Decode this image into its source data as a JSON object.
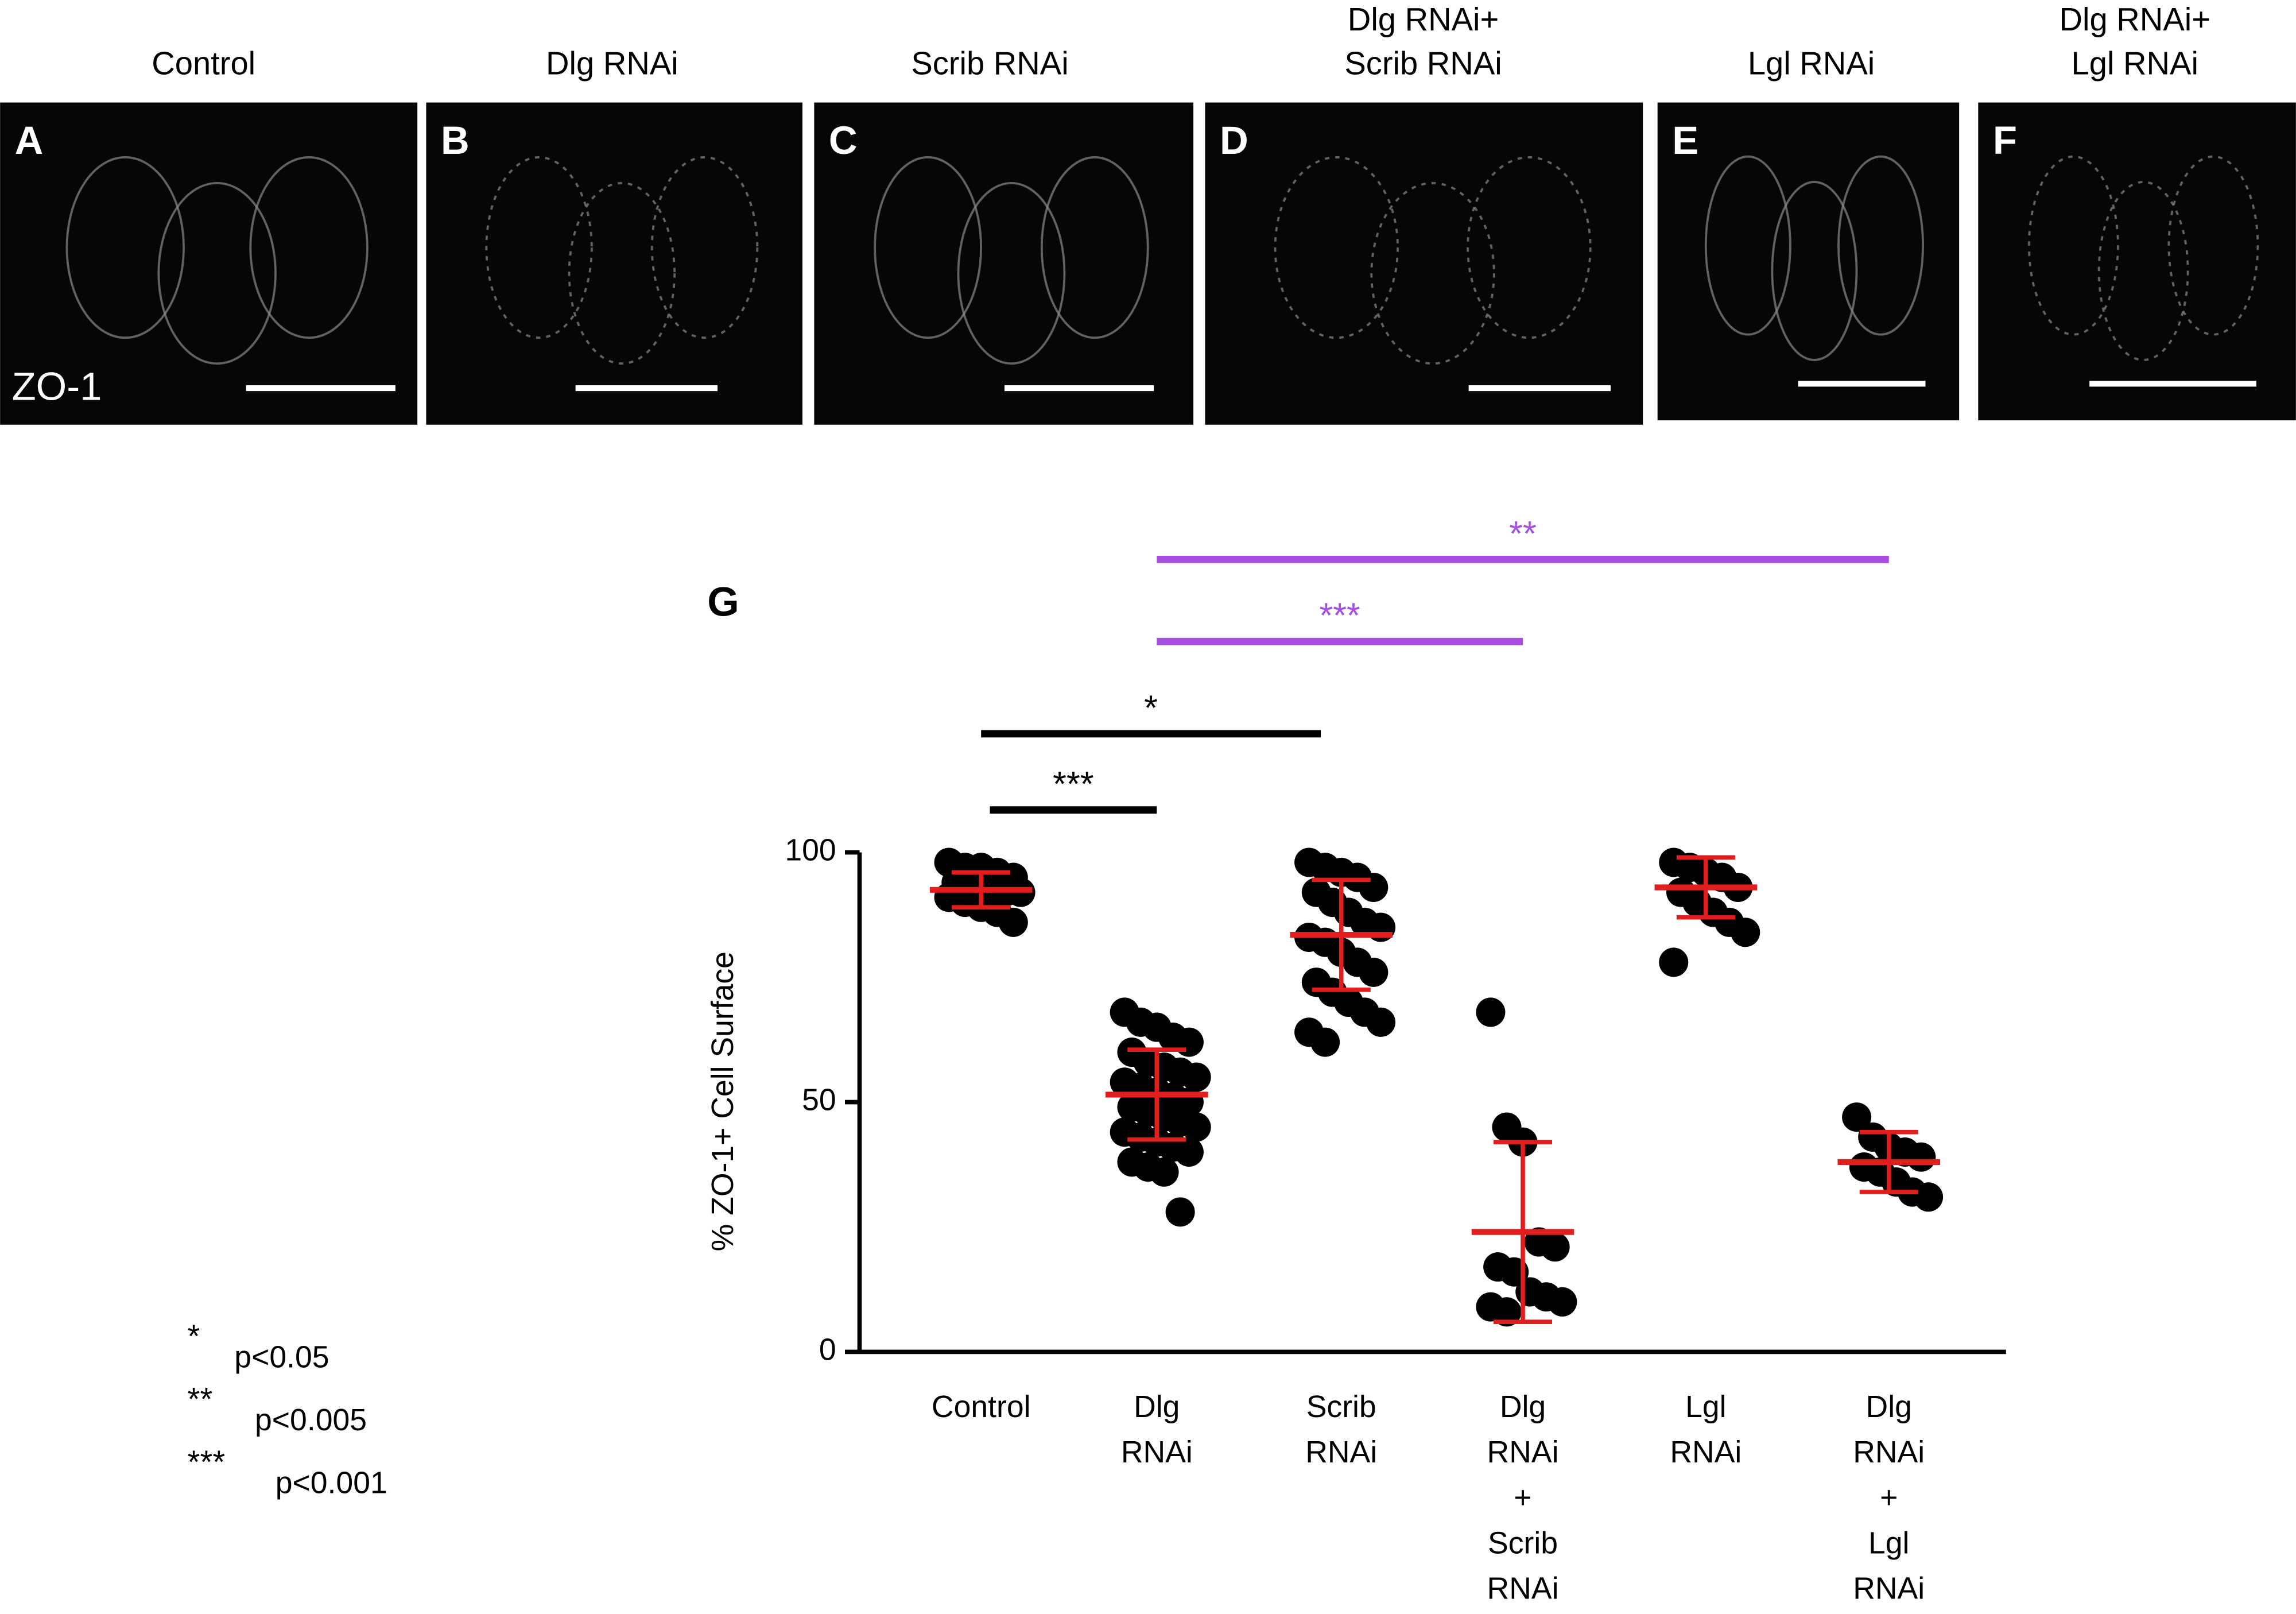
{
  "panels": [
    {
      "letter": "A",
      "title": [
        "Control"
      ],
      "stain": "ZO-1"
    },
    {
      "letter": "B",
      "title": [
        "Dlg RNAi"
      ]
    },
    {
      "letter": "C",
      "title": [
        "Scrib RNAi"
      ]
    },
    {
      "letter": "D",
      "title": [
        "Dlg RNAi+",
        "Scrib RNAi"
      ]
    },
    {
      "letter": "E",
      "title": [
        "Lgl RNAi"
      ]
    },
    {
      "letter": "F",
      "title": [
        "Dlg RNAi+",
        "Lgl RNAi"
      ]
    }
  ],
  "chart_data": {
    "type": "dot",
    "panel_label": "G",
    "y_label": "% ZO-1+ Cell Surface",
    "categories": [
      [
        "Control"
      ],
      [
        "Dlg",
        "RNAi"
      ],
      [
        "Scrib",
        "RNAi"
      ],
      [
        "Dlg",
        "RNAi",
        "+",
        "Scrib",
        "RNAi"
      ],
      [
        "Lgl",
        "RNAi"
      ],
      [
        "Dlg",
        "RNAi",
        "+",
        "Lgl",
        "RNAi"
      ]
    ],
    "ylim": [
      0,
      100
    ],
    "yticks": [
      0,
      50,
      100
    ],
    "dot_color": "#000000",
    "summary_color": "#e01e1e",
    "means": [
      92.5,
      51.5,
      83.5,
      24,
      93,
      38
    ],
    "sd": [
      3.5,
      9,
      11,
      18,
      6,
      6
    ],
    "points": [
      [
        98,
        97,
        97,
        96,
        95,
        94,
        93,
        93,
        92,
        92,
        91,
        90,
        89,
        88,
        86
      ],
      [
        68,
        66,
        65,
        63,
        62,
        60,
        58,
        57,
        56,
        55,
        54,
        53,
        52,
        51,
        50,
        49,
        48,
        47,
        46,
        45,
        44,
        43,
        42,
        41,
        40,
        38,
        37,
        36,
        28
      ],
      [
        98,
        97,
        96,
        95,
        93,
        92,
        90,
        88,
        86,
        85,
        83,
        82,
        80,
        78,
        76,
        74,
        72,
        70,
        68,
        66,
        64,
        62
      ],
      [
        68,
        45,
        42,
        22,
        21,
        17,
        16,
        12,
        11,
        10,
        9,
        8
      ],
      [
        98,
        97,
        96,
        95,
        93,
        92,
        90,
        88,
        86,
        84,
        78
      ],
      [
        47,
        43,
        41,
        40,
        39,
        37,
        36,
        34,
        32,
        31
      ]
    ],
    "comparisons": [
      {
        "pair": [
          0,
          1
        ],
        "label": "***",
        "color": "#000000"
      },
      {
        "pair": [
          0,
          2
        ],
        "label": "*",
        "color": "#000000"
      },
      {
        "pair": [
          1,
          3
        ],
        "label": "***",
        "color": "#a64ee0"
      },
      {
        "pair": [
          1,
          5
        ],
        "label": "**",
        "color": "#a64ee0"
      }
    ],
    "significance_key": [
      {
        "symbol": "*",
        "label": "p<0.05"
      },
      {
        "symbol": "**",
        "label": "p<0.005"
      },
      {
        "symbol": "***",
        "label": "p<0.001"
      }
    ]
  }
}
